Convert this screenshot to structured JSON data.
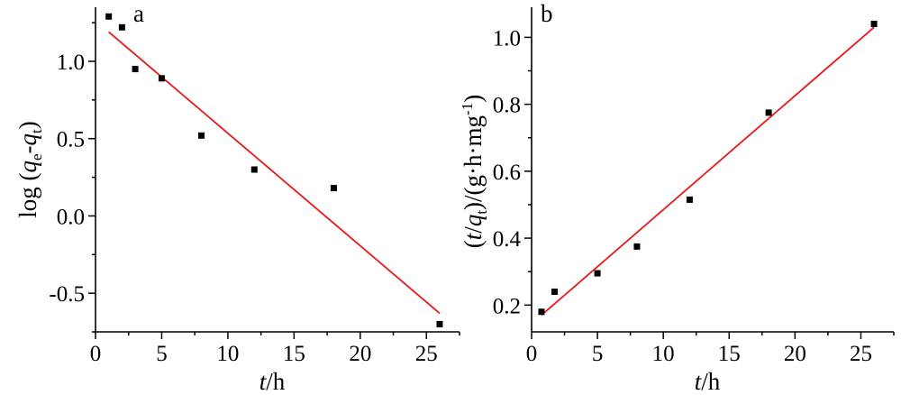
{
  "colors": {
    "fit_line": "#e8181c",
    "points": "#000000",
    "axes": "#000000"
  },
  "chart_data": [
    {
      "type": "scatter",
      "panel_label": "a",
      "xlabel_italic": "t",
      "xlabel_rest": "/h",
      "ylabel_parts": {
        "pre": "log (",
        "q1": "q",
        "sub1": "e",
        "dash": "-",
        "q2": "q",
        "sub2": "t",
        "post": ")"
      },
      "xlim": [
        0,
        27.5
      ],
      "ylim": [
        -0.75,
        1.35
      ],
      "xticks": [
        0,
        5,
        10,
        15,
        20,
        25
      ],
      "xtick_labels": [
        "0",
        "5",
        "10",
        "15",
        "20",
        "25"
      ],
      "yticks": [
        -0.5,
        0.0,
        0.5,
        1.0
      ],
      "ytick_labels": [
        "-0.5",
        "0.0",
        "0.5",
        "1.0"
      ],
      "points": [
        {
          "x": 1,
          "y": 1.29
        },
        {
          "x": 2,
          "y": 1.22
        },
        {
          "x": 3,
          "y": 0.95
        },
        {
          "x": 5,
          "y": 0.89
        },
        {
          "x": 8,
          "y": 0.52
        },
        {
          "x": 12,
          "y": 0.3
        },
        {
          "x": 18,
          "y": 0.18
        },
        {
          "x": 26,
          "y": -0.7
        }
      ],
      "fit_line": {
        "x": [
          1,
          26
        ],
        "y": [
          1.19,
          -0.63
        ]
      }
    },
    {
      "type": "scatter",
      "panel_label": "b",
      "xlabel_italic": "t",
      "xlabel_rest": "/h",
      "ylabel_parts": {
        "pre": "(",
        "t": "t",
        "slash": "/",
        "q": "q",
        "sub": "t",
        "mid": ")/(g·h·mg",
        "sup": "-1",
        "post": ")"
      },
      "xlim": [
        0,
        27.5
      ],
      "ylim": [
        0.12,
        1.09
      ],
      "xticks": [
        0,
        5,
        10,
        15,
        20,
        25
      ],
      "xtick_labels": [
        "0",
        "5",
        "10",
        "15",
        "20",
        "25"
      ],
      "yticks": [
        0.2,
        0.4,
        0.6,
        0.8,
        1.0
      ],
      "ytick_labels": [
        "0.2",
        "0.4",
        "0.6",
        "0.8",
        "1.0"
      ],
      "points": [
        {
          "x": 0.75,
          "y": 0.18
        },
        {
          "x": 1.75,
          "y": 0.24
        },
        {
          "x": 5,
          "y": 0.295
        },
        {
          "x": 8,
          "y": 0.375
        },
        {
          "x": 12,
          "y": 0.515
        },
        {
          "x": 18,
          "y": 0.775
        },
        {
          "x": 26,
          "y": 1.04
        }
      ],
      "fit_line": {
        "x": [
          0.75,
          26
        ],
        "y": [
          0.17,
          1.03
        ]
      }
    }
  ]
}
